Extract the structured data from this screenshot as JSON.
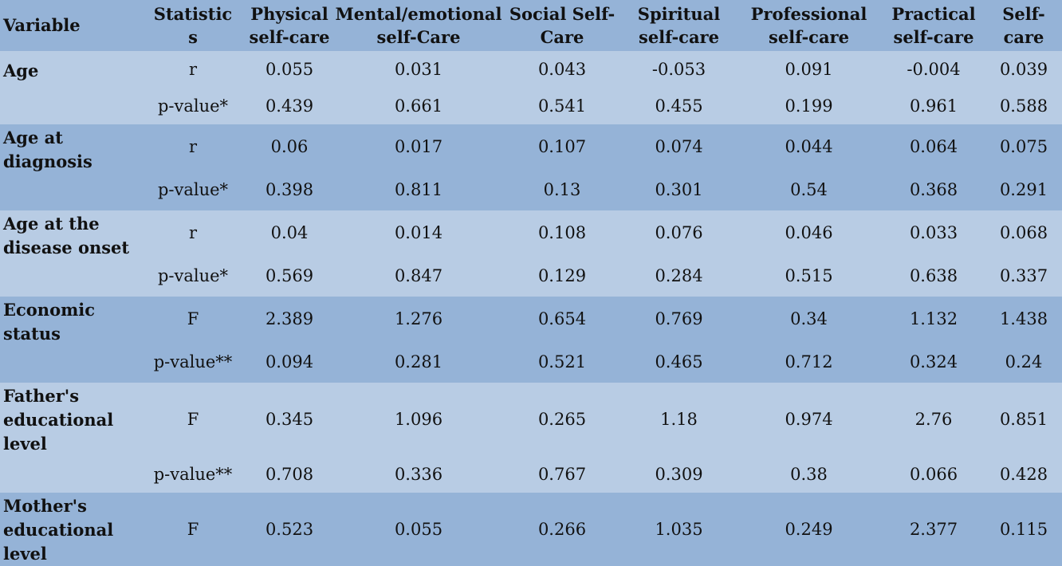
{
  "columns": [
    {
      "line1": "Variable",
      "line2": ""
    },
    {
      "line1": "Statistic",
      "line2": "s"
    },
    {
      "line1": "Physical",
      "line2": "self-care"
    },
    {
      "line1": "Mental/emotional",
      "line2": "self-Care"
    },
    {
      "line1": "Social Self-",
      "line2": "Care"
    },
    {
      "line1": "Spiritual",
      "line2": "self-care"
    },
    {
      "line1": "Professional",
      "line2": "self-care"
    },
    {
      "line1": "Practical",
      "line2": "self-care"
    },
    {
      "line1": "Self-",
      "line2": "care"
    }
  ],
  "groups": [
    {
      "variable": "Age",
      "rows": [
        {
          "stat": "r",
          "values": [
            "0.055",
            "0.031",
            "0.043",
            "-0.053",
            "0.091",
            "-0.004",
            "0.039"
          ]
        },
        {
          "stat": "p-value*",
          "values": [
            "0.439",
            "0.661",
            "0.541",
            "0.455",
            "0.199",
            "0.961",
            "0.588"
          ]
        }
      ]
    },
    {
      "variable": "Age at diagnosis",
      "rows": [
        {
          "stat": "r",
          "values": [
            "0.06",
            "0.017",
            "0.107",
            "0.074",
            "0.044",
            "0.064",
            "0.075"
          ]
        },
        {
          "stat": "p-value*",
          "values": [
            "0.398",
            "0.811",
            "0.13",
            "0.301",
            "0.54",
            "0.368",
            "0.291"
          ]
        }
      ]
    },
    {
      "variable": "Age at the disease onset",
      "rows": [
        {
          "stat": "r",
          "values": [
            "0.04",
            "0.014",
            "0.108",
            "0.076",
            "0.046",
            "0.033",
            "0.068"
          ]
        },
        {
          "stat": "p-value*",
          "values": [
            "0.569",
            "0.847",
            "0.129",
            "0.284",
            "0.515",
            "0.638",
            "0.337"
          ]
        }
      ]
    },
    {
      "variable": "Economic status",
      "rows": [
        {
          "stat": "F",
          "values": [
            "2.389",
            "1.276",
            "0.654",
            "0.769",
            "0.34",
            "1.132",
            "1.438"
          ]
        },
        {
          "stat": "p-value**",
          "values": [
            "0.094",
            "0.281",
            "0.521",
            "0.465",
            "0.712",
            "0.324",
            "0.24"
          ]
        }
      ]
    },
    {
      "variable": "Father's educational level",
      "rows": [
        {
          "stat": "F",
          "values": [
            "0.345",
            "1.096",
            "0.265",
            "1.18",
            "0.974",
            "2.76",
            "0.851"
          ]
        },
        {
          "stat": "p-value**",
          "values": [
            "0.708",
            "0.336",
            "0.767",
            "0.309",
            "0.38",
            "0.066",
            "0.428"
          ]
        }
      ]
    },
    {
      "variable": "Mother's educational level",
      "rows": [
        {
          "stat": "F",
          "values": [
            "0.523",
            "0.055",
            "0.266",
            "1.035",
            "0.249",
            "2.377",
            "0.115"
          ]
        }
      ]
    }
  ]
}
